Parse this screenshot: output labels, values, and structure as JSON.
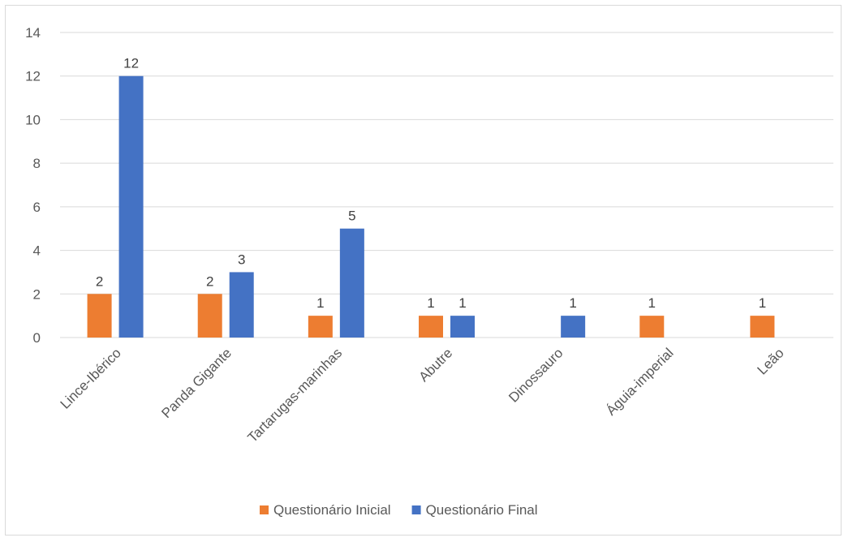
{
  "chart_data": {
    "type": "bar",
    "categories": [
      "Lince-Ibérico",
      "Panda Gigante",
      "Tartarugas-marinhas",
      "Abutre",
      "Dinossauro",
      "Águia-imperial",
      "Leão"
    ],
    "series": [
      {
        "name": "Questionário Inicial",
        "color": "#ED7D31",
        "values": [
          2,
          2,
          1,
          1,
          null,
          1,
          1
        ]
      },
      {
        "name": "Questionário Final",
        "color": "#4472C4",
        "values": [
          12,
          3,
          5,
          1,
          1,
          null,
          null
        ]
      }
    ],
    "y_ticks": [
      "0",
      "2",
      "4",
      "6",
      "8",
      "10",
      "12",
      "14"
    ],
    "ylim": [
      0,
      14
    ],
    "grid": true,
    "legend_position": "bottom"
  }
}
